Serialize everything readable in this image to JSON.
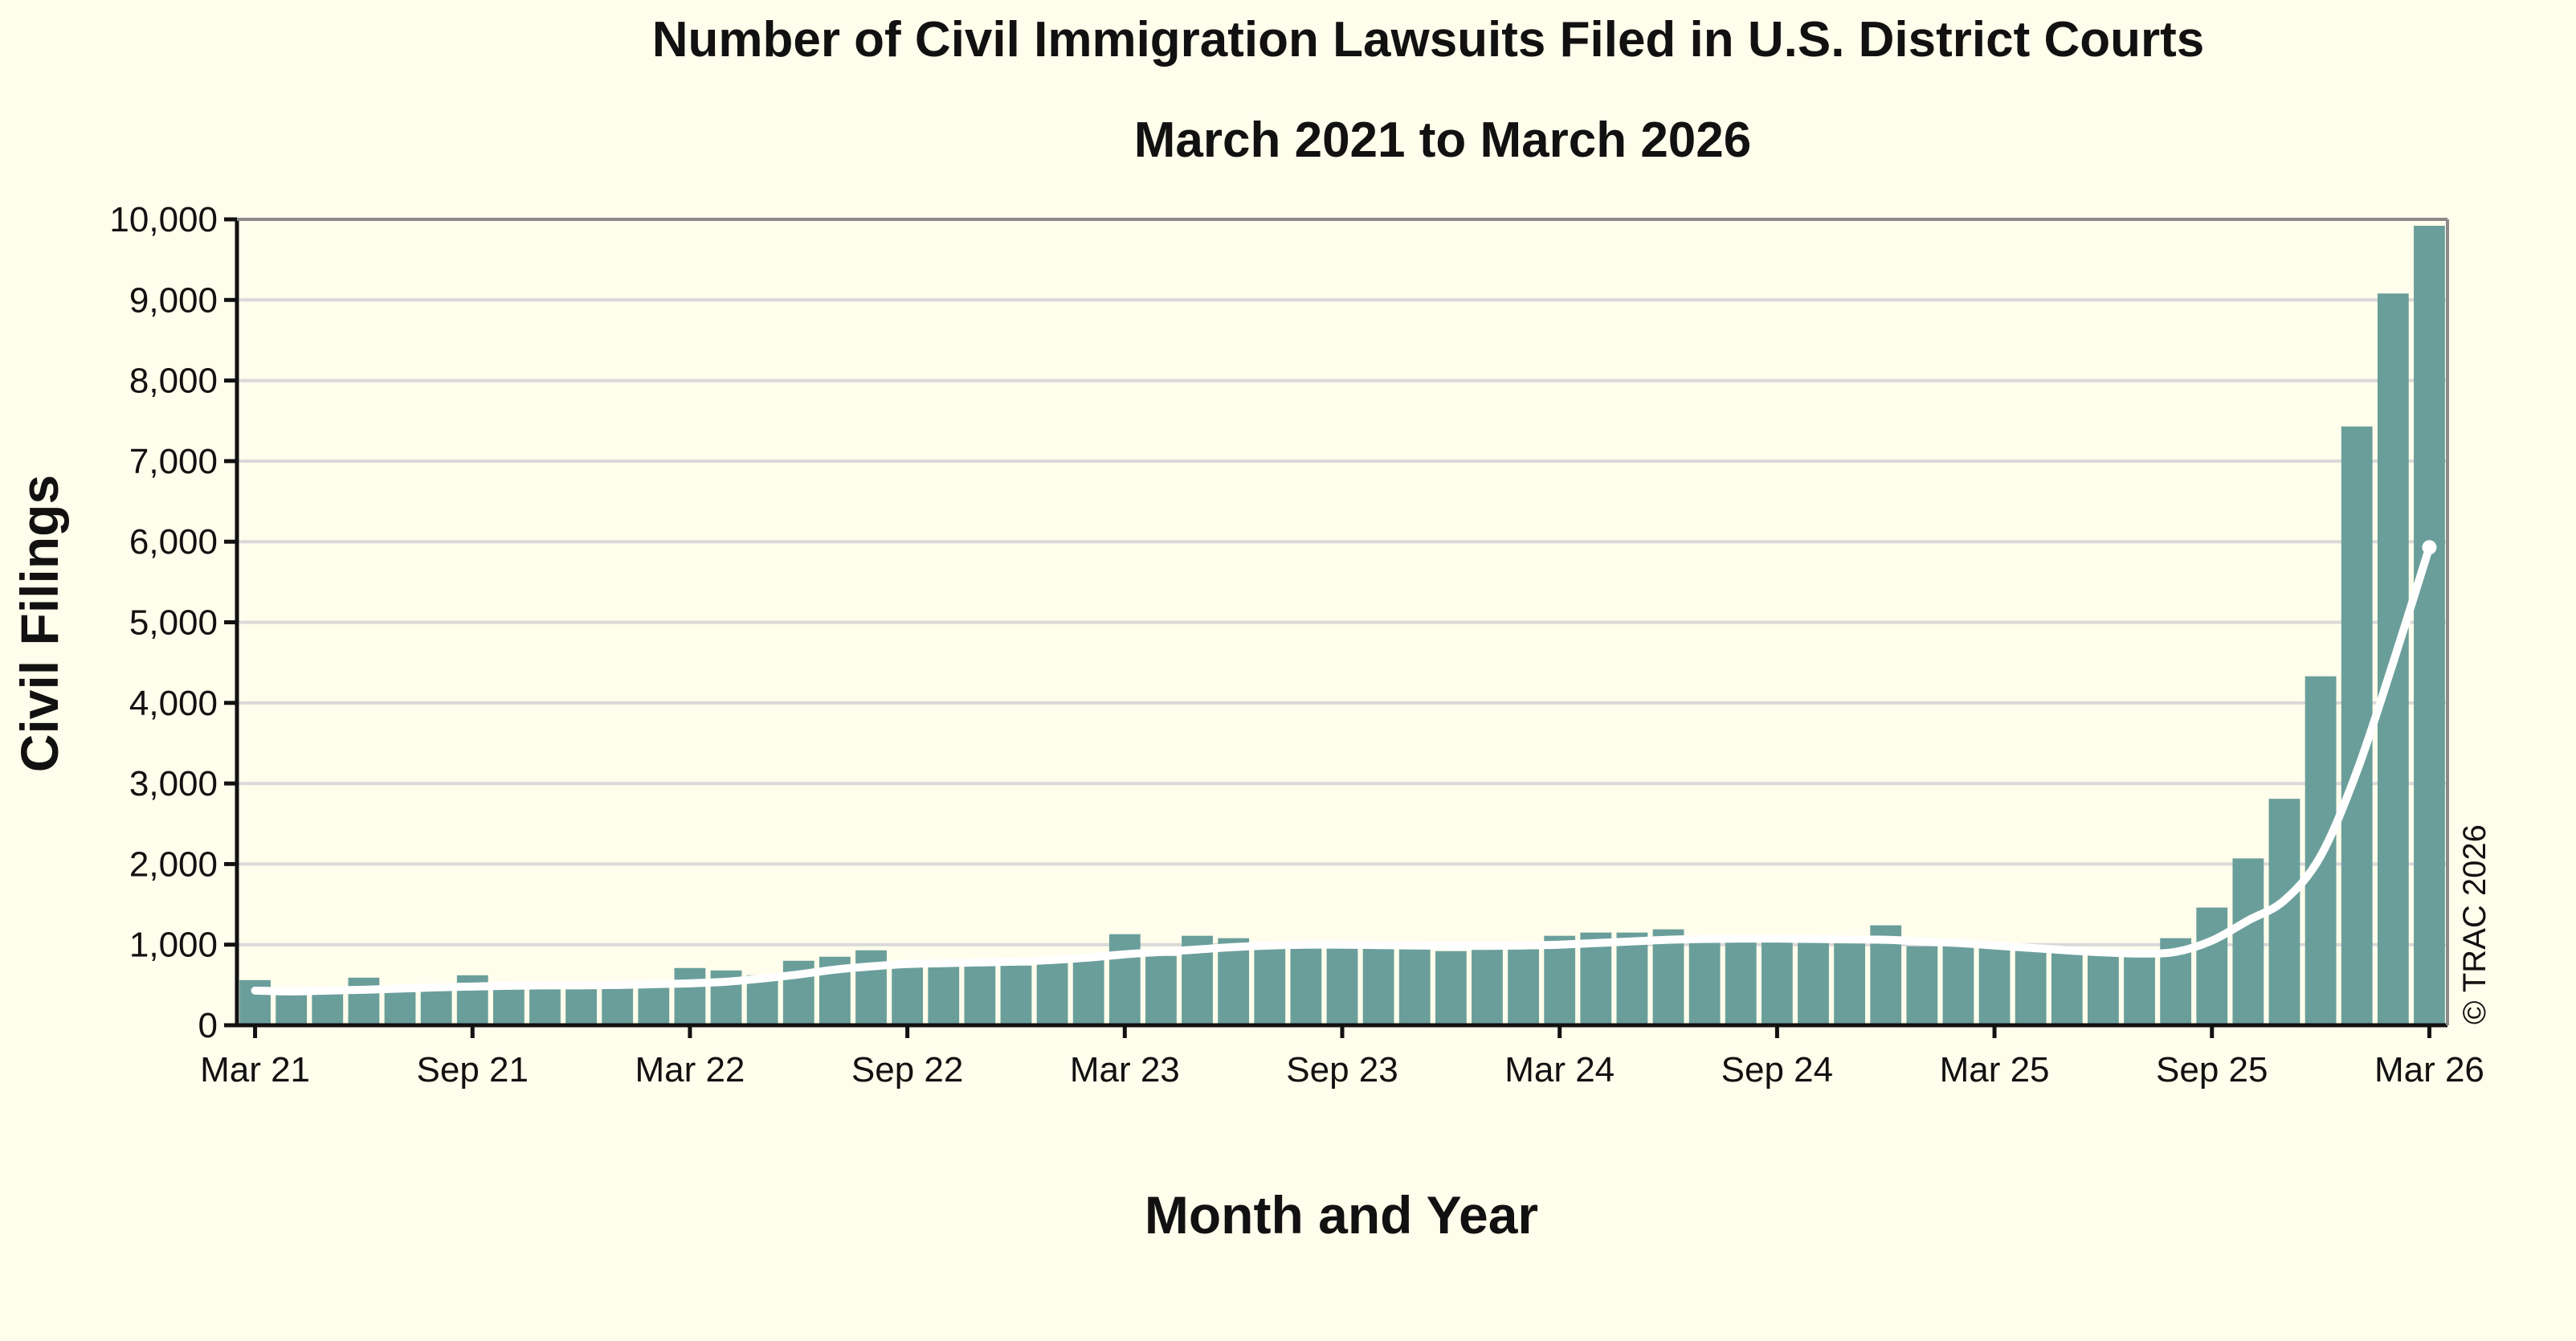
{
  "chart_data": {
    "type": "bar",
    "title": "Number of Civil Immigration Lawsuits Filed in U.S. District Courts",
    "subtitle": "March 2021 to March 2026",
    "xlabel": "Month and Year",
    "ylabel": "Civil Filings",
    "credit": "© TRAC 2026",
    "ylim": [
      0,
      10000
    ],
    "y_ticks": [
      0,
      1000,
      2000,
      3000,
      4000,
      5000,
      6000,
      7000,
      8000,
      9000,
      10000
    ],
    "y_tick_labels": [
      "0",
      "1,000",
      "2,000",
      "3,000",
      "4,000",
      "5,000",
      "6,000",
      "7,000",
      "8,000",
      "9,000",
      "10,000"
    ],
    "x_tick_labels": [
      "Mar 21",
      "Sep 21",
      "Mar 22",
      "Sep 22",
      "Mar 23",
      "Sep 23",
      "Mar 24",
      "Sep 24",
      "Mar 25",
      "Sep 25",
      "Mar 26"
    ],
    "grid": true,
    "bar_color": "#6a9e9b",
    "trend_color": "#ffffff",
    "categories": [
      "Mar 21",
      "Apr 21",
      "May 21",
      "Jun 21",
      "Jul 21",
      "Aug 21",
      "Sep 21",
      "Oct 21",
      "Nov 21",
      "Dec 21",
      "Jan 22",
      "Feb 22",
      "Mar 22",
      "Apr 22",
      "May 22",
      "Jun 22",
      "Jul 22",
      "Aug 22",
      "Sep 22",
      "Oct 22",
      "Nov 22",
      "Dec 22",
      "Jan 23",
      "Feb 23",
      "Mar 23",
      "Apr 23",
      "May 23",
      "Jun 23",
      "Jul 23",
      "Aug 23",
      "Sep 23",
      "Oct 23",
      "Nov 23",
      "Dec 23",
      "Jan 24",
      "Feb 24",
      "Mar 24",
      "Apr 24",
      "May 24",
      "Jun 24",
      "Jul 24",
      "Aug 24",
      "Sep 24",
      "Oct 24",
      "Nov 24",
      "Dec 24",
      "Jan 25",
      "Feb 25",
      "Mar 25",
      "Apr 25",
      "May 25",
      "Jun 25",
      "Jul 25",
      "Aug 25",
      "Sep 25",
      "Oct 25",
      "Nov 25",
      "Dec 25",
      "Jan 26",
      "Feb 26",
      "Mar 26"
    ],
    "series": [
      {
        "type": "bar",
        "values": [
          560,
          380,
          400,
          590,
          440,
          440,
          620,
          470,
          480,
          470,
          480,
          480,
          710,
          680,
          620,
          800,
          850,
          930,
          760,
          780,
          780,
          740,
          780,
          850,
          1130,
          860,
          1110,
          1080,
          1010,
          1010,
          1020,
          1010,
          990,
          920,
          980,
          970,
          1110,
          1150,
          1150,
          1190,
          1070,
          1050,
          1050,
          1040,
          1060,
          1240,
          980,
          990,
          960,
          930,
          920,
          880,
          900,
          1080,
          1460,
          2070,
          2810,
          4330,
          7430,
          9080,
          9920
        ]
      },
      {
        "type": "line",
        "values": [
          430,
          420,
          430,
          440,
          455,
          470,
          480,
          490,
          495,
          495,
          500,
          510,
          520,
          540,
          580,
          630,
          690,
          730,
          760,
          770,
          780,
          790,
          810,
          840,
          880,
          910,
          940,
          970,
          990,
          1000,
          1000,
          995,
          990,
          985,
          985,
          990,
          1000,
          1020,
          1040,
          1060,
          1070,
          1075,
          1075,
          1070,
          1065,
          1060,
          1040,
          1020,
          990,
          960,
          930,
          905,
          890,
          910,
          1050,
          1300,
          1550,
          2100,
          3150,
          4500,
          5930
        ]
      }
    ]
  }
}
